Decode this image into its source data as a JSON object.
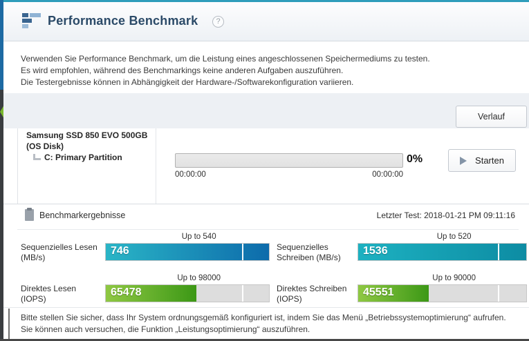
{
  "header": {
    "title": "Performance Benchmark",
    "help_glyph": "?"
  },
  "intro": {
    "line1": "Verwenden Sie Performance Benchmark, um die Leistung eines angeschlossenen Speichermediums zu testen.",
    "line2": "Es wird empfohlen, während des Benchmarkings keine anderen Aufgaben auszuführen.",
    "line3": "Die Testergebnisse können in Abhängigkeit der Hardware-/Softwarekonfiguration variieren."
  },
  "toolbar": {
    "history_label": "Verlauf"
  },
  "drive": {
    "name": "Samsung SSD 850 EVO 500GB",
    "subname": "(OS Disk)",
    "partition": "C: Primary Partition"
  },
  "progress": {
    "percent": "0%",
    "elapsed": "00:00:00",
    "remaining": "00:00:00",
    "start_label": "Starten"
  },
  "results": {
    "title": "Benchmarkergebnisse",
    "last_test": "Letzter Test: 2018-01-21 PM 09:11:16"
  },
  "chart_data": {
    "type": "bar",
    "title": "Benchmarkergebnisse",
    "note": "fill = value / (upto * 1.2), clamped at 100%; white marker = rated spec position",
    "items": [
      {
        "label": "Sequenzielles Lesen",
        "unit": "(MB/s)",
        "value": 746,
        "upto": 540,
        "upto_label": "Up to 540",
        "colors": [
          "#2ab5c6",
          "#0d6bab"
        ]
      },
      {
        "label": "Sequenzielles Schreiben",
        "unit": "(MB/s)",
        "value": 1536,
        "upto": 520,
        "upto_label": "Up to 520",
        "colors": [
          "#1db1c1",
          "#0d8ca3"
        ]
      },
      {
        "label": "Direktes Lesen",
        "unit": "(IOPS)",
        "value": 65478,
        "upto": 98000,
        "upto_label": "Up to 98000",
        "colors": [
          "#8fc843",
          "#3c9816"
        ]
      },
      {
        "label": "Direktes Schreiben",
        "unit": "(IOPS)",
        "value": 45551,
        "upto": 90000,
        "upto_label": "Up to 90000",
        "colors": [
          "#8fc843",
          "#3c9816"
        ]
      }
    ]
  },
  "footer": {
    "line1": "Bitte stellen Sie sicher, dass Ihr System ordnungsgemäß konfiguriert ist, indem Sie das Menü „Betriebssystemoptimierung“ aufrufen.",
    "line2": "Sie können auch versuchen, die Funktion „Leistungsoptimierung“ auszuführen."
  },
  "colors": {
    "accent_teal": "#2f9dbb",
    "title_navy": "#2b4a68",
    "band_gray": "#edf0f4",
    "green_chevron": "#79b82d"
  }
}
